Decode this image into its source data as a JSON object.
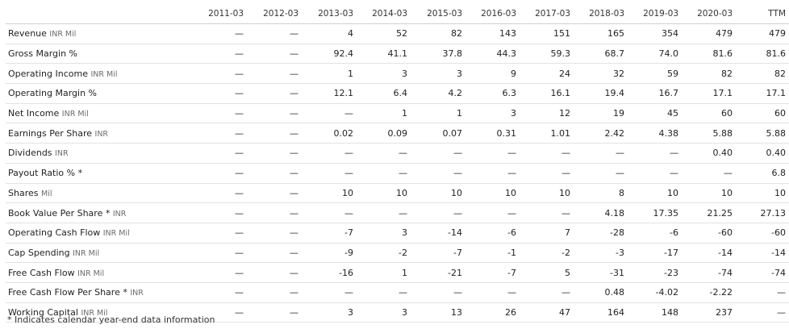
{
  "table": {
    "columns": [
      "2011-03",
      "2012-03",
      "2013-03",
      "2014-03",
      "2015-03",
      "2016-03",
      "2017-03",
      "2018-03",
      "2019-03",
      "2020-03",
      "TTM"
    ],
    "rows": [
      {
        "label": "Revenue",
        "unit": "INR Mil",
        "values": [
          "—",
          "—",
          "4",
          "52",
          "82",
          "143",
          "151",
          "165",
          "354",
          "479",
          "479"
        ]
      },
      {
        "label": "Gross Margin %",
        "unit": "",
        "values": [
          "—",
          "—",
          "92.4",
          "41.1",
          "37.8",
          "44.3",
          "59.3",
          "68.7",
          "74.0",
          "81.6",
          "81.6"
        ]
      },
      {
        "label": "Operating Income",
        "unit": "INR Mil",
        "values": [
          "—",
          "—",
          "1",
          "3",
          "3",
          "9",
          "24",
          "32",
          "59",
          "82",
          "82"
        ]
      },
      {
        "label": "Operating Margin %",
        "unit": "",
        "values": [
          "—",
          "—",
          "12.1",
          "6.4",
          "4.2",
          "6.3",
          "16.1",
          "19.4",
          "16.7",
          "17.1",
          "17.1"
        ]
      },
      {
        "label": "Net Income",
        "unit": "INR Mil",
        "values": [
          "—",
          "—",
          "—",
          "1",
          "1",
          "3",
          "12",
          "19",
          "45",
          "60",
          "60"
        ]
      },
      {
        "label": "Earnings Per Share",
        "unit": "INR",
        "values": [
          "—",
          "—",
          "0.02",
          "0.09",
          "0.07",
          "0.31",
          "1.01",
          "2.42",
          "4.38",
          "5.88",
          "5.88"
        ]
      },
      {
        "label": "Dividends",
        "unit": "INR",
        "values": [
          "—",
          "—",
          "—",
          "—",
          "—",
          "—",
          "—",
          "—",
          "—",
          "0.40",
          "0.40"
        ]
      },
      {
        "label": "Payout Ratio % *",
        "unit": "",
        "values": [
          "—",
          "—",
          "—",
          "—",
          "—",
          "—",
          "—",
          "—",
          "—",
          "—",
          "6.8"
        ]
      },
      {
        "label": "Shares",
        "unit": "Mil",
        "values": [
          "—",
          "—",
          "10",
          "10",
          "10",
          "10",
          "10",
          "8",
          "10",
          "10",
          "10"
        ]
      },
      {
        "label": "Book Value Per Share *",
        "unit": "INR",
        "values": [
          "—",
          "—",
          "—",
          "—",
          "—",
          "—",
          "—",
          "4.18",
          "17.35",
          "21.25",
          "27.13"
        ]
      },
      {
        "label": "Operating Cash Flow",
        "unit": "INR Mil",
        "values": [
          "—",
          "—",
          "-7",
          "3",
          "-14",
          "-6",
          "7",
          "-28",
          "-6",
          "-60",
          "-60"
        ]
      },
      {
        "label": "Cap Spending",
        "unit": "INR Mil",
        "values": [
          "—",
          "—",
          "-9",
          "-2",
          "-7",
          "-1",
          "-2",
          "-3",
          "-17",
          "-14",
          "-14"
        ]
      },
      {
        "label": "Free Cash Flow",
        "unit": "INR Mil",
        "values": [
          "—",
          "—",
          "-16",
          "1",
          "-21",
          "-7",
          "5",
          "-31",
          "-23",
          "-74",
          "-74"
        ]
      },
      {
        "label": "Free Cash Flow Per Share *",
        "unit": "INR",
        "values": [
          "—",
          "—",
          "—",
          "—",
          "—",
          "—",
          "—",
          "0.48",
          "-4.02",
          "-2.22",
          "—"
        ]
      },
      {
        "label": "Working Capital",
        "unit": "INR Mil",
        "values": [
          "—",
          "—",
          "3",
          "3",
          "13",
          "26",
          "47",
          "164",
          "148",
          "237",
          "—"
        ]
      }
    ]
  },
  "footnote": "* Indicates calendar year-end data information"
}
